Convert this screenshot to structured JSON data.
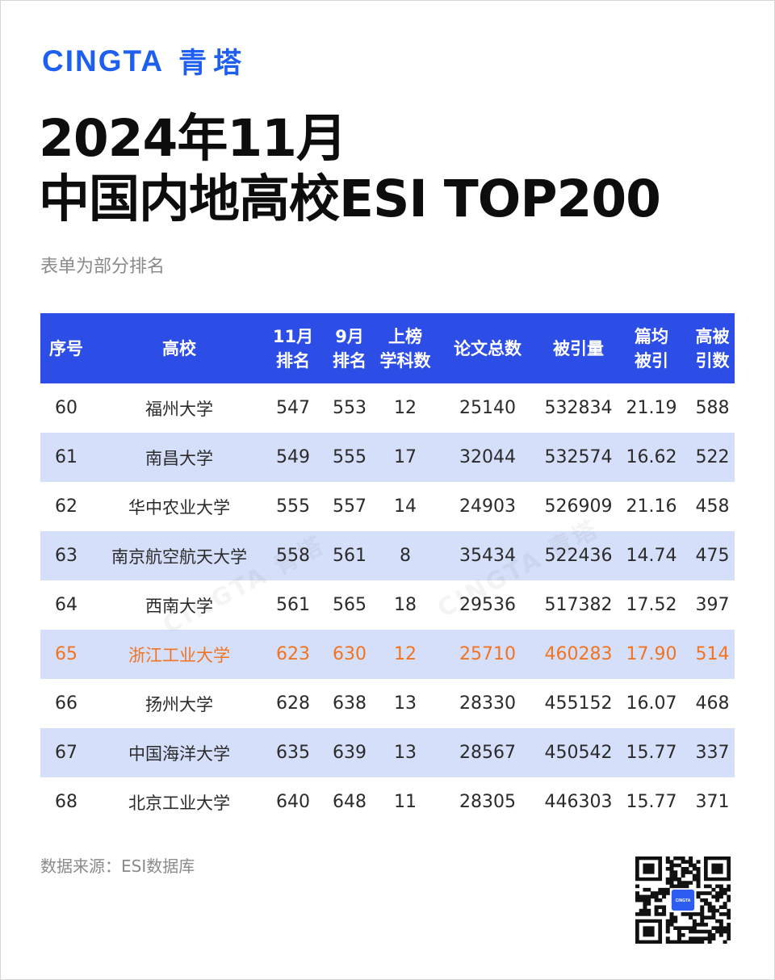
{
  "brand": {
    "latin": "CINGTA",
    "cjk": "青塔"
  },
  "title": {
    "line1": "2024年11月",
    "line2": "中国内地高校ESI TOP200"
  },
  "subtitle": "表单为部分排名",
  "table": {
    "headers": [
      {
        "l1": "序号",
        "l2": ""
      },
      {
        "l1": "高校",
        "l2": ""
      },
      {
        "l1": "11月",
        "l2": "排名"
      },
      {
        "l1": "9月",
        "l2": "排名"
      },
      {
        "l1": "上榜",
        "l2": "学科数"
      },
      {
        "l1": "论文总数",
        "l2": ""
      },
      {
        "l1": "被引量",
        "l2": ""
      },
      {
        "l1": "篇均",
        "l2": "被引"
      },
      {
        "l1": "高被",
        "l2": "引数"
      }
    ],
    "rows": [
      [
        "60",
        "福州大学",
        "547",
        "553",
        "12",
        "25140",
        "532834",
        "21.19",
        "588"
      ],
      [
        "61",
        "南昌大学",
        "549",
        "555",
        "17",
        "32044",
        "532574",
        "16.62",
        "522"
      ],
      [
        "62",
        "华中农业大学",
        "555",
        "557",
        "14",
        "24903",
        "526909",
        "21.16",
        "458"
      ],
      [
        "63",
        "南京航空航天大学",
        "558",
        "561",
        "8",
        "35434",
        "522436",
        "14.74",
        "475"
      ],
      [
        "64",
        "西南大学",
        "561",
        "565",
        "18",
        "29536",
        "517382",
        "17.52",
        "397"
      ],
      [
        "65",
        "浙江工业大学",
        "623",
        "630",
        "12",
        "25710",
        "460283",
        "17.90",
        "514"
      ],
      [
        "66",
        "扬州大学",
        "628",
        "638",
        "13",
        "28330",
        "455152",
        "16.07",
        "468"
      ],
      [
        "67",
        "中国海洋大学",
        "635",
        "639",
        "13",
        "28567",
        "450542",
        "15.77",
        "337"
      ],
      [
        "68",
        "北京工业大学",
        "640",
        "648",
        "11",
        "28305",
        "446303",
        "15.77",
        "371"
      ]
    ],
    "highlight_row_index": 5
  },
  "source": "数据来源：ESI数据库",
  "qr": {
    "center_label": "CINGTA"
  },
  "watermarks": [
    "CINGTA 青塔",
    "CINGTA 青塔"
  ],
  "colors": {
    "brand_blue": "#1f5ff0",
    "header_blue": "#2c4de6",
    "row_alt": "#d6dff9",
    "highlight": "#f07422"
  },
  "icons": [
    "qr-code-icon"
  ]
}
